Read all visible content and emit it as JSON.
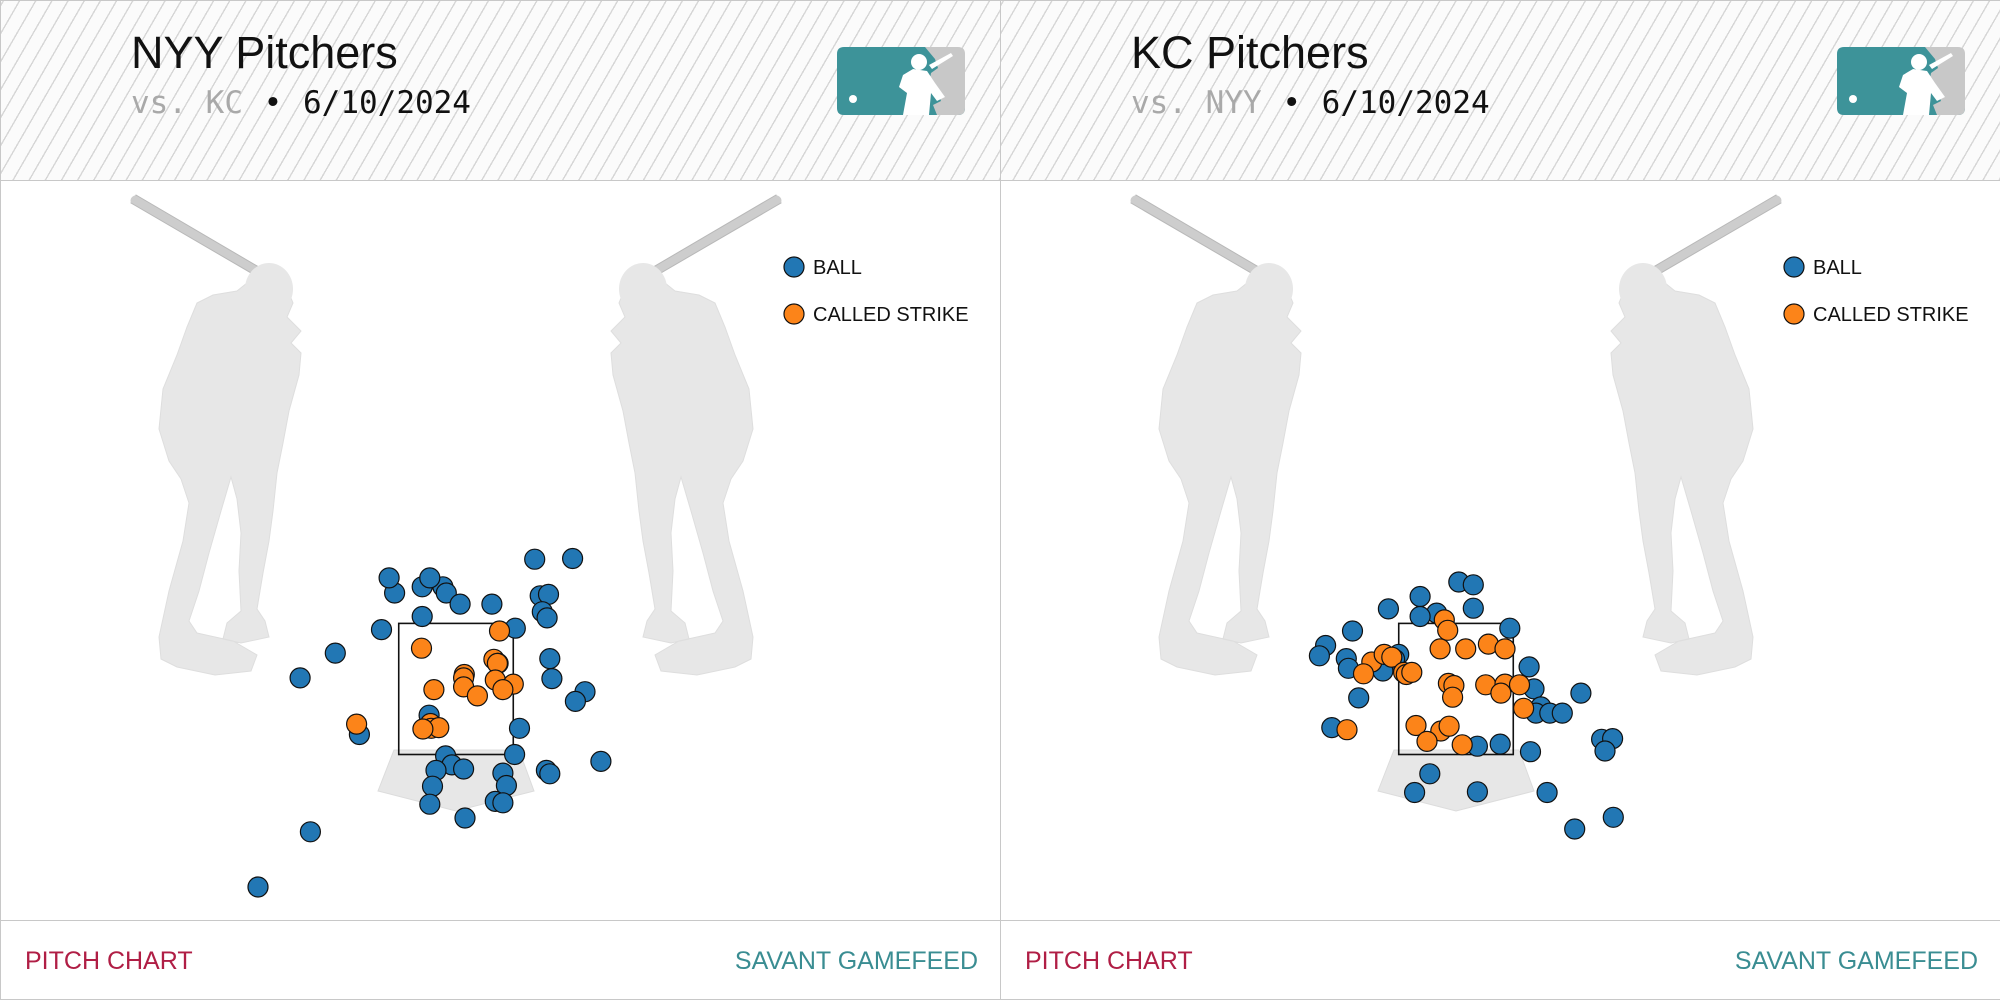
{
  "colors": {
    "ball": "#2277b4",
    "called_strike": "#fc8419",
    "silhouette": "#e7e7e7",
    "bat": "#cdcdcd",
    "logo_teal": "#3d9399",
    "logo_gray": "#c8c8c8",
    "footer_left": "#b01e45",
    "footer_right": "#3a8d92"
  },
  "panels": [
    {
      "title": "NYY Pitchers",
      "subtitle_vs": "vs. KC",
      "subtitle_sep": "•",
      "subtitle_date": "6/10/2024",
      "logo_icon": "mlb-logo-icon",
      "footer_left": "PITCH CHART",
      "footer_right": "SAVANT GAMEFEED"
    },
    {
      "title": "KC Pitchers",
      "subtitle_vs": "vs. NYY",
      "subtitle_sep": "•",
      "subtitle_date": "6/10/2024",
      "logo_icon": "mlb-logo-icon",
      "footer_left": "PITCH CHART",
      "footer_right": "SAVANT GAMEFEED"
    }
  ],
  "chart_data": [
    {
      "type": "scatter",
      "title": "NYY Pitchers",
      "subtitle": "vs. KC • 6/10/2024",
      "xlabel": "",
      "ylabel": "",
      "units": "feet",
      "xlim": [
        -2.94,
        2.78
      ],
      "ylim": [
        -0.47,
        5.05
      ],
      "grid": false,
      "legend": {
        "position": "top-right",
        "entries": [
          "BALL",
          "CALLED STRIKE"
        ]
      },
      "strike_zone": {
        "x": [
          -0.83,
          0.83
        ],
        "y": [
          1.5,
          3.4
        ]
      },
      "series": [
        {
          "name": "BALL",
          "color": "#2277b4",
          "points": [
            [
              -0.49,
              3.93
            ],
            [
              -0.19,
              3.93
            ],
            [
              -0.14,
              3.84
            ],
            [
              0.06,
              3.68
            ],
            [
              0.52,
              3.68
            ],
            [
              -0.89,
              3.84
            ],
            [
              -0.97,
              4.06
            ],
            [
              -0.38,
              4.06
            ],
            [
              1.69,
              4.34
            ],
            [
              1.14,
              4.33
            ],
            [
              1.22,
              3.8
            ],
            [
              1.34,
              3.82
            ],
            [
              1.25,
              3.57
            ],
            [
              1.32,
              3.48
            ],
            [
              0.86,
              3.33
            ],
            [
              -0.49,
              3.5
            ],
            [
              -1.08,
              3.31
            ],
            [
              -1.75,
              2.97
            ],
            [
              -2.26,
              2.61
            ],
            [
              1.36,
              2.89
            ],
            [
              1.39,
              2.6
            ],
            [
              1.87,
              2.41
            ],
            [
              1.73,
              2.27
            ],
            [
              -0.39,
              2.07
            ],
            [
              -0.36,
              1.93
            ],
            [
              -1.4,
              1.79
            ],
            [
              0.92,
              1.88
            ],
            [
              -0.15,
              1.48
            ],
            [
              -0.06,
              1.35
            ],
            [
              0.85,
              1.5
            ],
            [
              0.11,
              1.29
            ],
            [
              -0.29,
              1.27
            ],
            [
              1.31,
              1.27
            ],
            [
              1.36,
              1.22
            ],
            [
              0.68,
              1.23
            ],
            [
              0.73,
              1.05
            ],
            [
              -0.34,
              1.04
            ],
            [
              -0.38,
              0.78
            ],
            [
              0.57,
              0.82
            ],
            [
              0.68,
              0.8
            ],
            [
              0.13,
              0.58
            ],
            [
              -2.11,
              0.38
            ],
            [
              2.1,
              1.4
            ],
            [
              -2.87,
              -0.42
            ]
          ]
        },
        {
          "name": "CALLED STRIKE",
          "color": "#fc8419",
          "points": [
            [
              0.63,
              3.29
            ],
            [
              -0.5,
              3.04
            ],
            [
              0.55,
              2.88
            ],
            [
              0.61,
              2.82
            ],
            [
              0.6,
              2.82
            ],
            [
              0.12,
              2.66
            ],
            [
              0.11,
              2.61
            ],
            [
              0.57,
              2.58
            ],
            [
              0.83,
              2.52
            ],
            [
              0.11,
              2.48
            ],
            [
              -0.32,
              2.44
            ],
            [
              0.68,
              2.44
            ],
            [
              0.31,
              2.35
            ],
            [
              -1.44,
              1.94
            ],
            [
              -0.37,
              1.95
            ],
            [
              -0.36,
              1.88
            ],
            [
              -0.25,
              1.89
            ],
            [
              -0.48,
              1.87
            ]
          ]
        }
      ]
    },
    {
      "type": "scatter",
      "title": "KC Pitchers",
      "subtitle": "vs. NYY • 6/10/2024",
      "xlabel": "",
      "ylabel": "",
      "units": "feet",
      "xlim": [
        -2.94,
        2.78
      ],
      "ylim": [
        -0.47,
        5.05
      ],
      "grid": false,
      "legend": {
        "position": "top-right",
        "entries": [
          "BALL",
          "CALLED STRIKE"
        ]
      },
      "strike_zone": {
        "x": [
          -0.83,
          0.83
        ],
        "y": [
          1.5,
          3.4
        ]
      },
      "series": [
        {
          "name": "BALL",
          "color": "#2277b4",
          "points": [
            [
              0.04,
              4.0
            ],
            [
              0.25,
              3.96
            ],
            [
              -0.52,
              3.79
            ],
            [
              -0.98,
              3.61
            ],
            [
              0.25,
              3.62
            ],
            [
              -0.28,
              3.55
            ],
            [
              -0.52,
              3.5
            ],
            [
              0.78,
              3.33
            ],
            [
              -1.5,
              3.29
            ],
            [
              -1.89,
              3.08
            ],
            [
              -1.98,
              2.93
            ],
            [
              -1.59,
              2.89
            ],
            [
              -1.56,
              2.75
            ],
            [
              -0.83,
              2.95
            ],
            [
              -0.89,
              2.88
            ],
            [
              -1.06,
              2.71
            ],
            [
              1.06,
              2.77
            ],
            [
              1.13,
              2.45
            ],
            [
              1.81,
              2.39
            ],
            [
              -1.41,
              2.32
            ],
            [
              1.23,
              2.19
            ],
            [
              1.16,
              2.1
            ],
            [
              1.36,
              2.1
            ],
            [
              1.54,
              2.1
            ],
            [
              -1.8,
              1.89
            ],
            [
              2.11,
              1.72
            ],
            [
              2.27,
              1.73
            ],
            [
              2.16,
              1.55
            ],
            [
              0.31,
              1.62
            ],
            [
              0.64,
              1.65
            ],
            [
              1.08,
              1.54
            ],
            [
              -0.38,
              1.22
            ],
            [
              -0.6,
              0.95
            ],
            [
              0.31,
              0.96
            ],
            [
              1.32,
              0.95
            ],
            [
              1.72,
              0.42
            ],
            [
              2.28,
              0.59
            ]
          ]
        },
        {
          "name": "CALLED STRIKE",
          "color": "#fc8419",
          "points": [
            [
              -0.17,
              3.45
            ],
            [
              -0.12,
              3.3
            ],
            [
              -1.22,
              2.84
            ],
            [
              -1.04,
              2.95
            ],
            [
              -0.93,
              2.91
            ],
            [
              -0.23,
              3.03
            ],
            [
              0.14,
              3.03
            ],
            [
              0.47,
              3.1
            ],
            [
              0.71,
              3.03
            ],
            [
              -1.34,
              2.67
            ],
            [
              -0.76,
              2.69
            ],
            [
              -0.72,
              2.66
            ],
            [
              -0.64,
              2.69
            ],
            [
              -0.11,
              2.53
            ],
            [
              -0.03,
              2.5
            ],
            [
              -0.05,
              2.33
            ],
            [
              0.43,
              2.51
            ],
            [
              0.71,
              2.52
            ],
            [
              0.92,
              2.51
            ],
            [
              0.65,
              2.39
            ],
            [
              0.98,
              2.17
            ],
            [
              -1.58,
              1.86
            ],
            [
              -0.58,
              1.92
            ],
            [
              -0.22,
              1.84
            ],
            [
              -0.1,
              1.91
            ],
            [
              -0.42,
              1.69
            ],
            [
              0.09,
              1.64
            ]
          ]
        }
      ]
    }
  ]
}
